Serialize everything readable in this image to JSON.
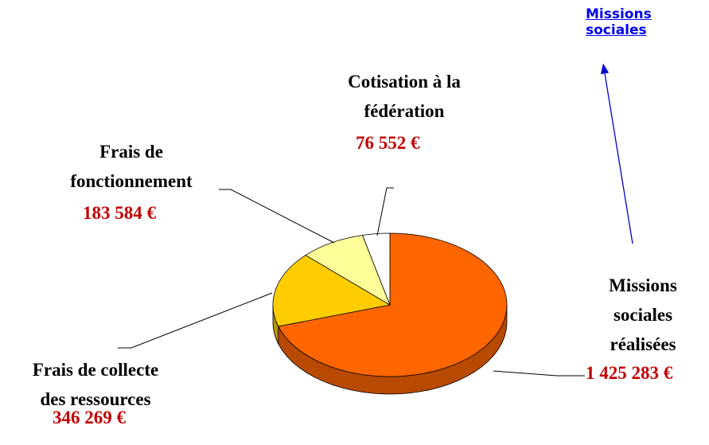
{
  "link": {
    "text": "Missions sociales"
  },
  "chart_data": {
    "type": "pie",
    "categories": [
      "Missions\nsociales\nréalisées",
      "Frais de collecte\ndes ressources",
      "Frais de\nfonctionnement",
      "Cotisation à la\nfédération"
    ],
    "values": [
      1425283,
      346269,
      183584,
      76552
    ],
    "value_labels": [
      "1 425 283 €",
      "346 269 €",
      "183 584 €",
      "76 552 €"
    ],
    "colors": [
      "#ff6600",
      "#ffcc00",
      "#ffff99",
      "#ffffff"
    ]
  }
}
